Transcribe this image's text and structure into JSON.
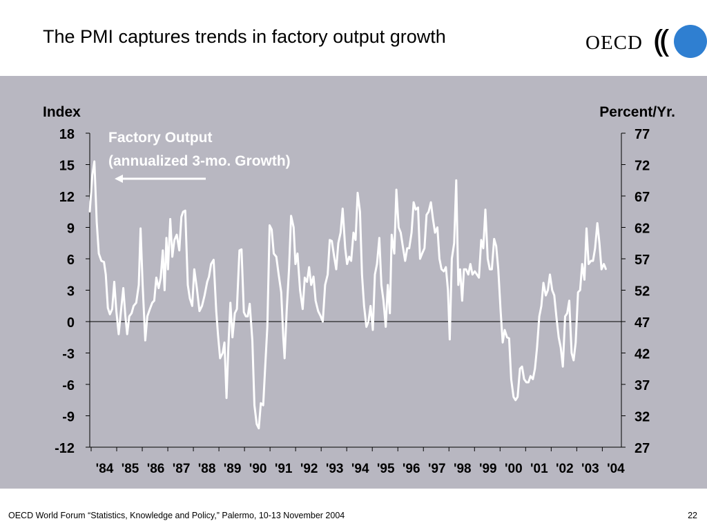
{
  "slide": {
    "title": "The PMI captures trends in factory output growth",
    "logo_text": "OECD",
    "footer": "OECD World Forum “Statistics, Knowledge and Policy,” Palermo, 10-13 November 2004",
    "page_number": "22"
  },
  "colors": {
    "panel_background": "#b8b7c1",
    "series_line": "#ffffff",
    "logo_circle": "#2f7fd1"
  },
  "chart_data": {
    "type": "line",
    "left_axis_label": "Index",
    "right_axis_label": "Percent/Yr.",
    "left_ticks": [
      "18",
      "15",
      "12",
      "9",
      "6",
      "3",
      "0",
      "-3",
      "-6",
      "-9",
      "-12"
    ],
    "right_ticks": [
      "77",
      "72",
      "67",
      "62",
      "57",
      "52",
      "47",
      "42",
      "37",
      "32",
      "27"
    ],
    "x_tick_labels": [
      "'84",
      "'85",
      "'86",
      "'87",
      "'88",
      "'89",
      "'90",
      "'91",
      "'92",
      "'93",
      "'94",
      "'95",
      "'96",
      "'97",
      "'98",
      "'99",
      "'00",
      "'01",
      "'02",
      "'03",
      "'04"
    ],
    "ylim": [
      -12,
      18
    ],
    "xlim": [
      1984.0,
      2004.6
    ],
    "zero_line": true,
    "grid": false,
    "series": [
      {
        "name": "Factory Output\n(annualized 3-mo. Growth)",
        "axis": "left",
        "color": "#ffffff",
        "points": [
          [
            1984.0,
            10.5
          ],
          [
            1984.1,
            14.0
          ],
          [
            1984.18,
            15.3
          ],
          [
            1984.27,
            9.5
          ],
          [
            1984.35,
            6.5
          ],
          [
            1984.45,
            5.8
          ],
          [
            1984.55,
            5.7
          ],
          [
            1984.62,
            4.5
          ],
          [
            1984.7,
            1.3
          ],
          [
            1984.78,
            0.7
          ],
          [
            1984.87,
            1.2
          ],
          [
            1984.95,
            3.8
          ],
          [
            1985.03,
            1.0
          ],
          [
            1985.12,
            -1.2
          ],
          [
            1985.2,
            0.8
          ],
          [
            1985.3,
            3.2
          ],
          [
            1985.38,
            0.5
          ],
          [
            1985.45,
            -1.2
          ],
          [
            1985.53,
            0.5
          ],
          [
            1985.62,
            0.8
          ],
          [
            1985.7,
            1.5
          ],
          [
            1985.8,
            1.8
          ],
          [
            1985.9,
            3.5
          ],
          [
            1985.97,
            8.9
          ],
          [
            1986.05,
            3.5
          ],
          [
            1986.15,
            -1.8
          ],
          [
            1986.23,
            0.5
          ],
          [
            1986.33,
            1.2
          ],
          [
            1986.42,
            1.8
          ],
          [
            1986.5,
            2.0
          ],
          [
            1986.58,
            4.2
          ],
          [
            1986.67,
            3.2
          ],
          [
            1986.75,
            4.2
          ],
          [
            1986.83,
            6.8
          ],
          [
            1986.9,
            3.0
          ],
          [
            1986.97,
            8.0
          ],
          [
            1987.03,
            5.0
          ],
          [
            1987.12,
            9.8
          ],
          [
            1987.2,
            6.2
          ],
          [
            1987.28,
            7.8
          ],
          [
            1987.37,
            8.3
          ],
          [
            1987.47,
            6.8
          ],
          [
            1987.55,
            10.0
          ],
          [
            1987.62,
            10.5
          ],
          [
            1987.7,
            10.6
          ],
          [
            1987.8,
            3.5
          ],
          [
            1987.88,
            2.2
          ],
          [
            1987.97,
            1.5
          ],
          [
            1988.05,
            5.0
          ],
          [
            1988.15,
            3.2
          ],
          [
            1988.25,
            1.0
          ],
          [
            1988.35,
            1.5
          ],
          [
            1988.45,
            2.5
          ],
          [
            1988.55,
            3.8
          ],
          [
            1988.62,
            4.3
          ],
          [
            1988.7,
            5.5
          ],
          [
            1988.8,
            5.9
          ],
          [
            1988.9,
            1.0
          ],
          [
            1988.97,
            -1.3
          ],
          [
            1989.05,
            -3.5
          ],
          [
            1989.15,
            -3.0
          ],
          [
            1989.22,
            -2.0
          ],
          [
            1989.3,
            -7.3
          ],
          [
            1989.37,
            -2.5
          ],
          [
            1989.45,
            1.8
          ],
          [
            1989.53,
            -1.5
          ],
          [
            1989.62,
            0.8
          ],
          [
            1989.7,
            1.2
          ],
          [
            1989.8,
            6.8
          ],
          [
            1989.88,
            6.9
          ],
          [
            1989.97,
            0.9
          ],
          [
            1990.05,
            0.5
          ],
          [
            1990.12,
            0.5
          ],
          [
            1990.2,
            1.7
          ],
          [
            1990.3,
            -1.8
          ],
          [
            1990.38,
            -8.0
          ],
          [
            1990.47,
            -9.8
          ],
          [
            1990.55,
            -10.2
          ],
          [
            1990.63,
            -7.8
          ],
          [
            1990.72,
            -8.0
          ],
          [
            1990.8,
            -4.2
          ],
          [
            1990.88,
            -0.5
          ],
          [
            1990.97,
            9.2
          ],
          [
            1991.05,
            8.8
          ],
          [
            1991.13,
            6.5
          ],
          [
            1991.23,
            6.2
          ],
          [
            1991.32,
            4.5
          ],
          [
            1991.42,
            2.8
          ],
          [
            1991.5,
            -1.5
          ],
          [
            1991.55,
            -3.5
          ],
          [
            1991.63,
            1.0
          ],
          [
            1991.72,
            5.0
          ],
          [
            1991.8,
            10.1
          ],
          [
            1991.9,
            9.0
          ],
          [
            1991.97,
            5.5
          ],
          [
            1992.05,
            6.5
          ],
          [
            1992.15,
            3.0
          ],
          [
            1992.25,
            1.2
          ],
          [
            1992.33,
            4.2
          ],
          [
            1992.42,
            3.8
          ],
          [
            1992.5,
            5.2
          ],
          [
            1992.58,
            3.5
          ],
          [
            1992.67,
            4.3
          ],
          [
            1992.75,
            2.0
          ],
          [
            1992.85,
            1.0
          ],
          [
            1992.95,
            0.5
          ],
          [
            1993.03,
            0.0
          ],
          [
            1993.12,
            3.5
          ],
          [
            1993.22,
            4.5
          ],
          [
            1993.3,
            7.8
          ],
          [
            1993.38,
            7.7
          ],
          [
            1993.47,
            6.2
          ],
          [
            1993.55,
            5.0
          ],
          [
            1993.63,
            7.5
          ],
          [
            1993.72,
            8.5
          ],
          [
            1993.8,
            10.8
          ],
          [
            1993.9,
            7.0
          ],
          [
            1993.97,
            5.5
          ],
          [
            1994.05,
            6.2
          ],
          [
            1994.13,
            5.8
          ],
          [
            1994.22,
            8.5
          ],
          [
            1994.3,
            7.8
          ],
          [
            1994.38,
            12.3
          ],
          [
            1994.47,
            10.5
          ],
          [
            1994.55,
            4.5
          ],
          [
            1994.63,
            1.5
          ],
          [
            1994.72,
            -0.5
          ],
          [
            1994.8,
            0.0
          ],
          [
            1994.88,
            1.5
          ],
          [
            1994.97,
            -0.8
          ],
          [
            1995.05,
            4.5
          ],
          [
            1995.13,
            5.5
          ],
          [
            1995.22,
            8.0
          ],
          [
            1995.3,
            3.5
          ],
          [
            1995.38,
            2.0
          ],
          [
            1995.47,
            -0.5
          ],
          [
            1995.55,
            3.5
          ],
          [
            1995.63,
            0.8
          ],
          [
            1995.7,
            8.3
          ],
          [
            1995.8,
            6.5
          ],
          [
            1995.88,
            12.6
          ],
          [
            1995.97,
            9.0
          ],
          [
            1996.05,
            8.5
          ],
          [
            1996.13,
            7.2
          ],
          [
            1996.22,
            5.8
          ],
          [
            1996.3,
            7.0
          ],
          [
            1996.38,
            7.0
          ],
          [
            1996.47,
            8.5
          ],
          [
            1996.55,
            11.4
          ],
          [
            1996.63,
            10.7
          ],
          [
            1996.72,
            10.9
          ],
          [
            1996.8,
            6.0
          ],
          [
            1996.88,
            6.5
          ],
          [
            1996.97,
            7.0
          ],
          [
            1997.05,
            10.2
          ],
          [
            1997.13,
            10.5
          ],
          [
            1997.22,
            11.4
          ],
          [
            1997.3,
            9.8
          ],
          [
            1997.38,
            8.5
          ],
          [
            1997.47,
            9.0
          ],
          [
            1997.55,
            6.0
          ],
          [
            1997.63,
            5.0
          ],
          [
            1997.72,
            4.8
          ],
          [
            1997.8,
            5.2
          ],
          [
            1997.88,
            3.0
          ],
          [
            1997.95,
            -1.7
          ],
          [
            1998.03,
            6.0
          ],
          [
            1998.12,
            7.5
          ],
          [
            1998.2,
            13.5
          ],
          [
            1998.28,
            3.5
          ],
          [
            1998.35,
            5.0
          ],
          [
            1998.43,
            2.0
          ],
          [
            1998.5,
            5.0
          ],
          [
            1998.58,
            5.0
          ],
          [
            1998.67,
            4.5
          ],
          [
            1998.75,
            5.5
          ],
          [
            1998.83,
            4.5
          ],
          [
            1998.92,
            4.8
          ],
          [
            1999.0,
            4.5
          ],
          [
            1999.08,
            4.2
          ],
          [
            1999.17,
            7.8
          ],
          [
            1999.25,
            7.0
          ],
          [
            1999.33,
            10.7
          ],
          [
            1999.42,
            6.0
          ],
          [
            1999.5,
            5.0
          ],
          [
            1999.58,
            5.0
          ],
          [
            1999.67,
            7.9
          ],
          [
            1999.75,
            7.2
          ],
          [
            1999.83,
            5.0
          ],
          [
            1999.92,
            1.0
          ],
          [
            2000.0,
            -2.0
          ],
          [
            2000.08,
            -0.8
          ],
          [
            2000.17,
            -1.5
          ],
          [
            2000.25,
            -1.6
          ],
          [
            2000.33,
            -5.5
          ],
          [
            2000.42,
            -7.2
          ],
          [
            2000.5,
            -7.5
          ],
          [
            2000.58,
            -7.2
          ],
          [
            2000.67,
            -4.5
          ],
          [
            2000.75,
            -4.3
          ],
          [
            2000.83,
            -5.5
          ],
          [
            2000.92,
            -5.8
          ],
          [
            2001.0,
            -5.8
          ],
          [
            2001.08,
            -5.2
          ],
          [
            2001.17,
            -5.5
          ],
          [
            2001.25,
            -4.5
          ],
          [
            2001.33,
            -2.5
          ],
          [
            2001.42,
            0.5
          ],
          [
            2001.5,
            1.5
          ],
          [
            2001.58,
            3.7
          ],
          [
            2001.67,
            2.5
          ],
          [
            2001.75,
            3.0
          ],
          [
            2001.83,
            4.5
          ],
          [
            2001.92,
            3.0
          ],
          [
            2002.0,
            2.5
          ],
          [
            2002.08,
            0.5
          ],
          [
            2002.17,
            -1.5
          ],
          [
            2002.25,
            -2.5
          ],
          [
            2002.33,
            -4.3
          ],
          [
            2002.42,
            0.5
          ],
          [
            2002.5,
            0.8
          ],
          [
            2002.58,
            2.0
          ],
          [
            2002.67,
            -3.0
          ],
          [
            2002.75,
            -3.7
          ],
          [
            2002.83,
            -2.0
          ],
          [
            2002.92,
            2.8
          ],
          [
            2003.0,
            3.0
          ],
          [
            2003.08,
            5.5
          ],
          [
            2003.17,
            4.0
          ],
          [
            2003.25,
            8.9
          ],
          [
            2003.33,
            5.5
          ],
          [
            2003.42,
            5.8
          ],
          [
            2003.5,
            5.8
          ],
          [
            2003.58,
            7.0
          ],
          [
            2003.67,
            9.4
          ],
          [
            2003.75,
            7.5
          ],
          [
            2003.83,
            5.0
          ],
          [
            2003.92,
            5.5
          ],
          [
            2004.0,
            5.0
          ]
        ]
      }
    ]
  }
}
